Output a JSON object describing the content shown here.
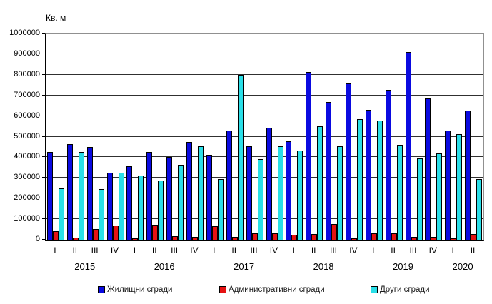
{
  "chart_data": {
    "type": "bar",
    "unit_label": "Кв. м",
    "ylim": [
      0,
      1000000
    ],
    "ytick_step": 100000,
    "grid": true,
    "legend_position": "bottom",
    "years": [
      {
        "label": "2015",
        "quarters": [
          "I",
          "II",
          "III",
          "IV"
        ]
      },
      {
        "label": "2016",
        "quarters": [
          "I",
          "II",
          "III",
          "IV"
        ]
      },
      {
        "label": "2017",
        "quarters": [
          "I",
          "II",
          "III",
          "IV"
        ]
      },
      {
        "label": "2018",
        "quarters": [
          "I",
          "II",
          "III",
          "IV"
        ]
      },
      {
        "label": "2019",
        "quarters": [
          "I",
          "II",
          "III",
          "IV"
        ]
      },
      {
        "label": "2020",
        "quarters": [
          "I",
          "II"
        ]
      }
    ],
    "categories": [
      "2015-I",
      "2015-II",
      "2015-III",
      "2015-IV",
      "2016-I",
      "2016-II",
      "2016-III",
      "2016-IV",
      "2017-I",
      "2017-II",
      "2017-III",
      "2017-IV",
      "2018-I",
      "2018-II",
      "2018-III",
      "2018-IV",
      "2019-I",
      "2019-II",
      "2019-III",
      "2019-IV",
      "2020-I",
      "2020-II"
    ],
    "series": [
      {
        "key": "residential-buildings",
        "name": "Жилищни сгради",
        "color": "#0a0ae0",
        "values": [
          425000,
          465000,
          450000,
          326000,
          356000,
          424000,
          400000,
          473000,
          412000,
          528000,
          454000,
          543000,
          476000,
          812000,
          668000,
          758000,
          630000,
          728000,
          910000,
          684000,
          531000,
          626000
        ]
      },
      {
        "key": "administrative-buildings",
        "name": "Административни сгради",
        "color": "#e51212",
        "values": [
          41000,
          9000,
          52000,
          68000,
          8000,
          73000,
          19000,
          15000,
          65000,
          13000,
          32000,
          30000,
          24000,
          26000,
          77000,
          8000,
          30000,
          31000,
          15000,
          15000,
          6000,
          26000
        ]
      },
      {
        "key": "other-buildings",
        "name": "Други сгради",
        "color": "#2adfe8",
        "values": [
          250000,
          427000,
          247000,
          324000,
          310000,
          288000,
          365000,
          455000,
          295000,
          800000,
          391000,
          454000,
          431000,
          550000,
          453000,
          584000,
          577000,
          459000,
          393000,
          418000,
          512000,
          295000
        ]
      }
    ]
  }
}
